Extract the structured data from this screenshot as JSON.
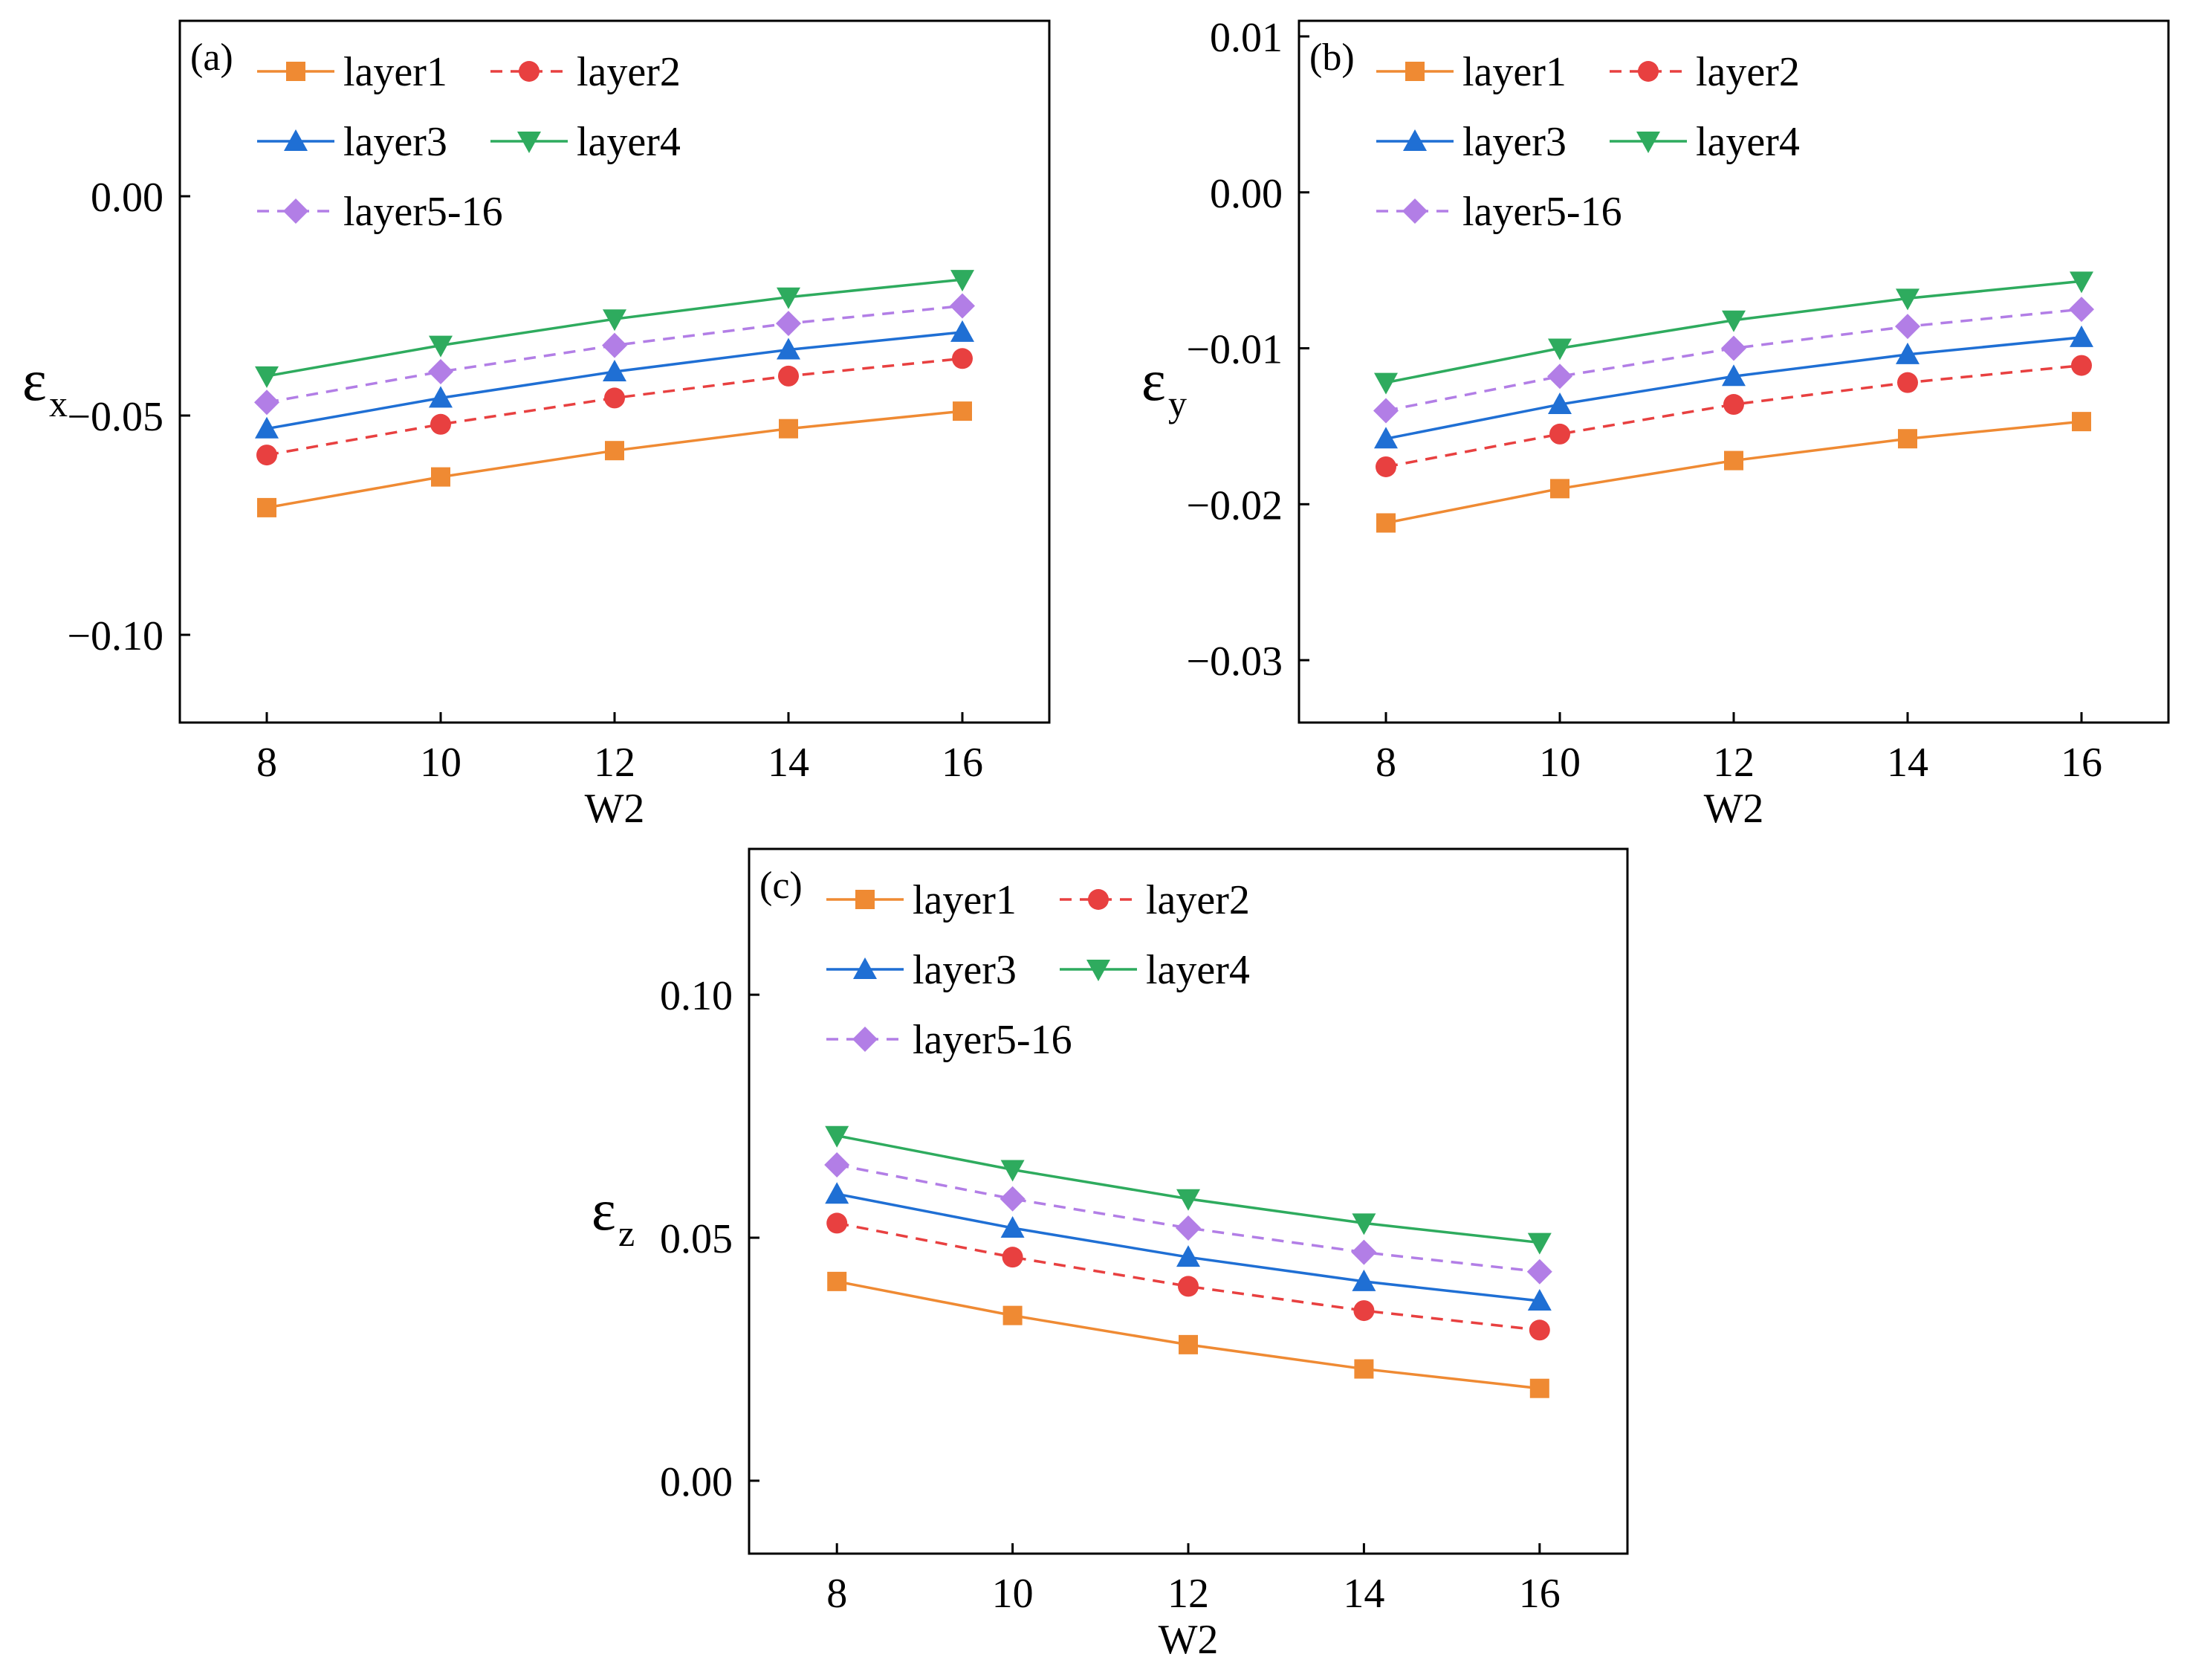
{
  "chart_data": [
    {
      "panel_label": "(a)",
      "type": "line",
      "x": [
        8,
        10,
        12,
        14,
        16
      ],
      "xlabel": "W2",
      "ylabel_main": "ε",
      "ylabel_sub": "x",
      "xlim": [
        7,
        17
      ],
      "ylim": [
        -0.12,
        0.04
      ],
      "xticks": [
        8,
        10,
        12,
        14,
        16
      ],
      "yticks": [
        -0.1,
        -0.05,
        0.0
      ],
      "ytick_labels": [
        "−0.10",
        "−0.05",
        "0.00"
      ],
      "legend_position": "top-left",
      "series": [
        {
          "name": "layer1",
          "color": "#ef8a33",
          "dash": "solid",
          "marker": "square",
          "values": [
            -0.071,
            -0.064,
            -0.058,
            -0.053,
            -0.049
          ]
        },
        {
          "name": "layer2",
          "color": "#e84040",
          "dash": "dashed",
          "marker": "circle",
          "values": [
            -0.059,
            -0.052,
            -0.046,
            -0.041,
            -0.037
          ]
        },
        {
          "name": "layer3",
          "color": "#1f6fd4",
          "dash": "solid",
          "marker": "triangle-up",
          "values": [
            -0.053,
            -0.046,
            -0.04,
            -0.035,
            -0.031
          ]
        },
        {
          "name": "layer4",
          "color": "#2eab5e",
          "dash": "solid",
          "marker": "triangle-down",
          "values": [
            -0.041,
            -0.034,
            -0.028,
            -0.023,
            -0.019
          ]
        },
        {
          "name": "layer5-16",
          "color": "#b27ee6",
          "dash": "dashed",
          "marker": "diamond",
          "values": [
            -0.047,
            -0.04,
            -0.034,
            -0.029,
            -0.025
          ]
        }
      ]
    },
    {
      "panel_label": "(b)",
      "type": "line",
      "x": [
        8,
        10,
        12,
        14,
        16
      ],
      "xlabel": "W2",
      "ylabel_main": "ε",
      "ylabel_sub": "y",
      "xlim": [
        7,
        17
      ],
      "ylim": [
        -0.034,
        0.011
      ],
      "xticks": [
        8,
        10,
        12,
        14,
        16
      ],
      "yticks": [
        -0.03,
        -0.02,
        -0.01,
        0.0,
        0.01
      ],
      "ytick_labels": [
        "−0.03",
        "−0.02",
        "−0.01",
        "0.00",
        "0.01"
      ],
      "legend_position": "top-left",
      "series": [
        {
          "name": "layer1",
          "color": "#ef8a33",
          "dash": "solid",
          "marker": "square",
          "values": [
            -0.0212,
            -0.019,
            -0.0172,
            -0.0158,
            -0.0147
          ]
        },
        {
          "name": "layer2",
          "color": "#e84040",
          "dash": "dashed",
          "marker": "circle",
          "values": [
            -0.0176,
            -0.0155,
            -0.0136,
            -0.0122,
            -0.0111
          ]
        },
        {
          "name": "layer3",
          "color": "#1f6fd4",
          "dash": "solid",
          "marker": "triangle-up",
          "values": [
            -0.0158,
            -0.0136,
            -0.0118,
            -0.0104,
            -0.0093
          ]
        },
        {
          "name": "layer4",
          "color": "#2eab5e",
          "dash": "solid",
          "marker": "triangle-down",
          "values": [
            -0.0122,
            -0.01,
            -0.0082,
            -0.0068,
            -0.0057
          ]
        },
        {
          "name": "layer5-16",
          "color": "#b27ee6",
          "dash": "dashed",
          "marker": "diamond",
          "values": [
            -0.014,
            -0.0118,
            -0.01,
            -0.0086,
            -0.0075
          ]
        }
      ]
    },
    {
      "panel_label": "(c)",
      "type": "line",
      "x": [
        8,
        10,
        12,
        14,
        16
      ],
      "xlabel": "W2",
      "ylabel_main": "ε",
      "ylabel_sub": "z",
      "xlim": [
        7,
        17
      ],
      "ylim": [
        -0.015,
        0.13
      ],
      "xticks": [
        8,
        10,
        12,
        14,
        16
      ],
      "yticks": [
        0.0,
        0.05,
        0.1
      ],
      "ytick_labels": [
        "0.00",
        "0.05",
        "0.10"
      ],
      "legend_position": "top-left",
      "series": [
        {
          "name": "layer1",
          "color": "#ef8a33",
          "dash": "solid",
          "marker": "square",
          "values": [
            0.041,
            0.034,
            0.028,
            0.023,
            0.019
          ]
        },
        {
          "name": "layer2",
          "color": "#e84040",
          "dash": "dashed",
          "marker": "circle",
          "values": [
            0.053,
            0.046,
            0.04,
            0.035,
            0.031
          ]
        },
        {
          "name": "layer3",
          "color": "#1f6fd4",
          "dash": "solid",
          "marker": "triangle-up",
          "values": [
            0.059,
            0.052,
            0.046,
            0.041,
            0.037
          ]
        },
        {
          "name": "layer4",
          "color": "#2eab5e",
          "dash": "solid",
          "marker": "triangle-down",
          "values": [
            0.071,
            0.064,
            0.058,
            0.053,
            0.049
          ]
        },
        {
          "name": "layer5-16",
          "color": "#b27ee6",
          "dash": "dashed",
          "marker": "diamond",
          "values": [
            0.065,
            0.058,
            0.052,
            0.047,
            0.043
          ]
        }
      ]
    }
  ]
}
